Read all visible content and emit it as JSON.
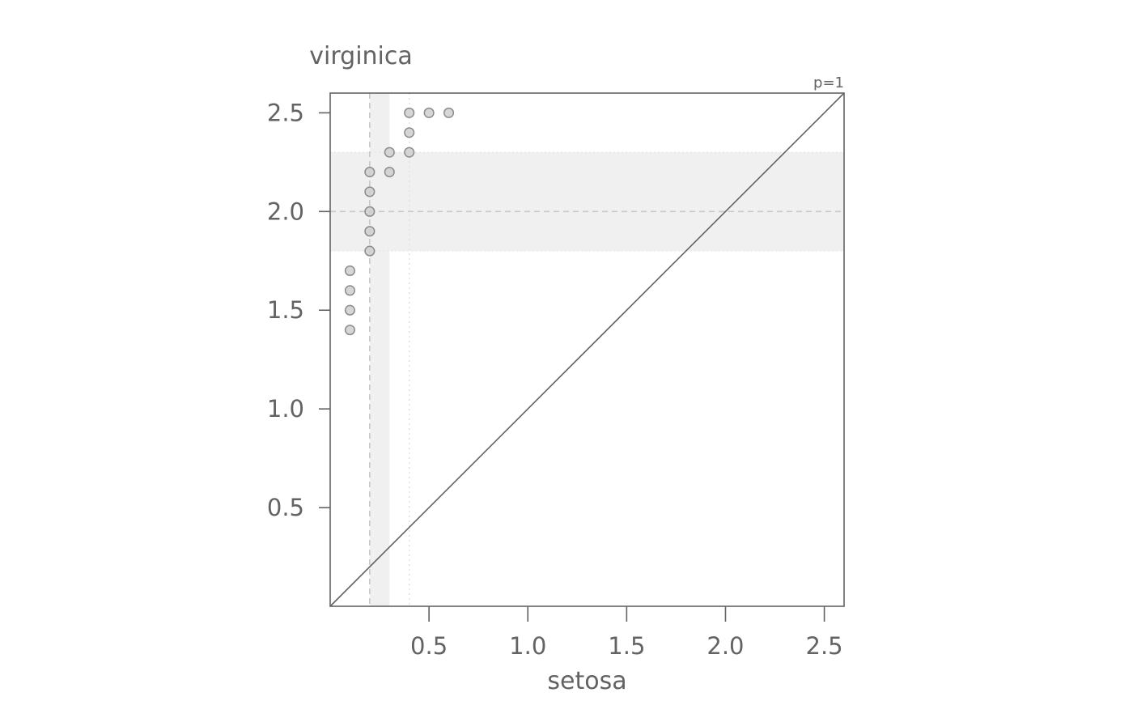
{
  "chart_data": {
    "type": "scatter",
    "xlabel": "setosa",
    "ylabel": "virginica",
    "annotation": "p=1",
    "xlim": [
      0.0,
      2.6
    ],
    "ylim": [
      0.0,
      2.6
    ],
    "x_ticks": [
      0.5,
      1.0,
      1.5,
      2.0,
      2.5
    ],
    "y_ticks": [
      0.5,
      1.0,
      1.5,
      2.0,
      2.5
    ],
    "x_tick_labels": [
      "0.5",
      "1.0",
      "1.5",
      "2.0",
      "2.5"
    ],
    "y_tick_labels": [
      "0.5",
      "1.0",
      "1.5",
      "2.0",
      "2.5"
    ],
    "grid": false,
    "reference_line": "y = x",
    "x_summary": {
      "median": 0.2,
      "q1": 0.2,
      "q3": 0.3,
      "upper_dotted": 0.4
    },
    "y_summary": {
      "median": 2.0,
      "q1": 1.8,
      "q3": 2.3
    },
    "points": [
      [
        0.1,
        1.4
      ],
      [
        0.1,
        1.5
      ],
      [
        0.1,
        1.6
      ],
      [
        0.1,
        1.7
      ],
      [
        0.2,
        1.8
      ],
      [
        0.2,
        1.9
      ],
      [
        0.2,
        2.0
      ],
      [
        0.2,
        2.1
      ],
      [
        0.2,
        2.2
      ],
      [
        0.3,
        2.2
      ],
      [
        0.3,
        2.3
      ],
      [
        0.4,
        2.3
      ],
      [
        0.4,
        2.4
      ],
      [
        0.4,
        2.5
      ],
      [
        0.5,
        2.5
      ],
      [
        0.6,
        2.5
      ]
    ],
    "colors": {
      "axis": "#636363",
      "point_fill": "#cfcfcf",
      "point_stroke": "#8c8c8c",
      "band": "#f0f0f0",
      "median_line": "#c8c8c8"
    }
  }
}
